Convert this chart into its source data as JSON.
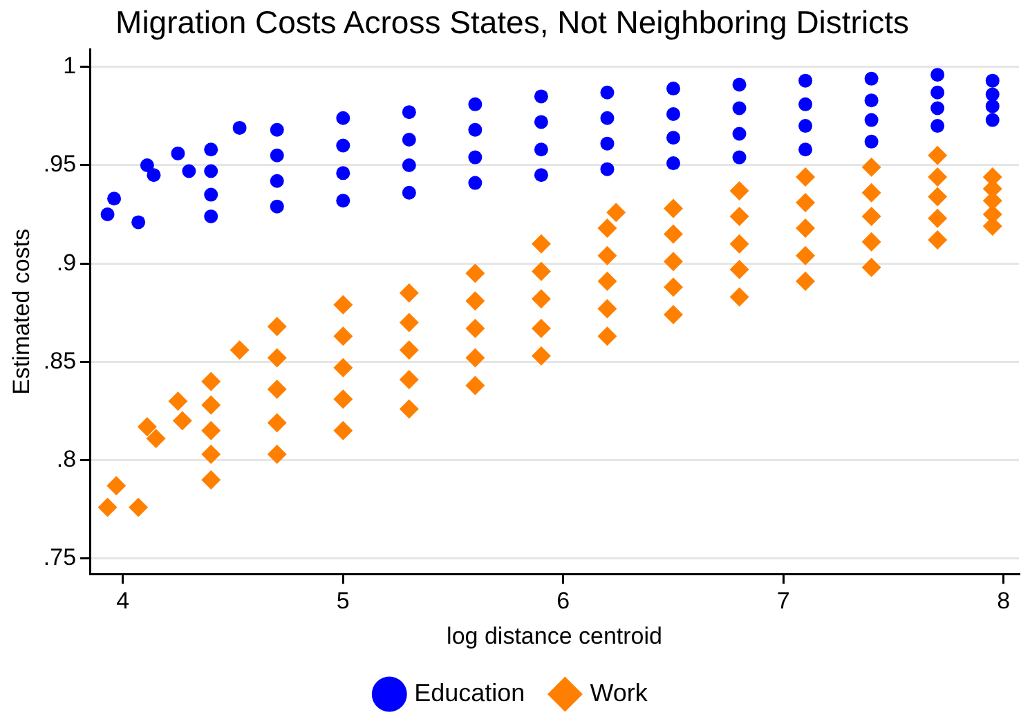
{
  "chart_data": {
    "type": "scatter",
    "title": "Migration Costs Across States, Not Neighboring Districts",
    "xlabel": "log distance centroid",
    "ylabel": "Estimated costs",
    "xlim": [
      3.85,
      8.07
    ],
    "xticks": [
      4,
      5,
      6,
      7,
      8
    ],
    "ylim": [
      0.742,
      1.009
    ],
    "yticks": [
      {
        "value": 0.75,
        "label": ".75"
      },
      {
        "value": 0.8,
        "label": ".8"
      },
      {
        "value": 0.85,
        "label": ".85"
      },
      {
        "value": 0.9,
        "label": ".9"
      },
      {
        "value": 0.95,
        "label": ".95"
      },
      1
    ],
    "grid": "y",
    "legend": "bottom",
    "series": [
      {
        "name": "Education",
        "color": "#0000ff",
        "marker": "circle",
        "x": [
          3.93,
          3.96,
          4.07,
          4.11,
          4.14,
          4.25,
          4.3,
          4.53,
          4.4,
          4.4,
          4.4,
          4.4,
          4.7,
          4.7,
          4.7,
          4.7,
          5.0,
          5.0,
          5.0,
          5.0,
          5.3,
          5.3,
          5.3,
          5.3,
          5.6,
          5.6,
          5.6,
          5.6,
          5.9,
          5.9,
          5.9,
          5.9,
          6.2,
          6.2,
          6.2,
          6.2,
          6.5,
          6.5,
          6.5,
          6.5,
          6.8,
          6.8,
          6.8,
          6.8,
          7.1,
          7.1,
          7.1,
          7.1,
          7.4,
          7.4,
          7.4,
          7.4,
          7.7,
          7.7,
          7.7,
          7.7,
          7.95,
          7.95,
          7.95,
          7.95
        ],
        "values": [
          0.925,
          0.933,
          0.921,
          0.95,
          0.945,
          0.956,
          0.947,
          0.969,
          0.958,
          0.947,
          0.935,
          0.924,
          0.968,
          0.955,
          0.942,
          0.929,
          0.974,
          0.96,
          0.946,
          0.932,
          0.977,
          0.963,
          0.95,
          0.936,
          0.981,
          0.968,
          0.954,
          0.941,
          0.985,
          0.972,
          0.958,
          0.945,
          0.987,
          0.974,
          0.961,
          0.948,
          0.989,
          0.976,
          0.964,
          0.951,
          0.991,
          0.979,
          0.966,
          0.954,
          0.993,
          0.981,
          0.97,
          0.958,
          0.994,
          0.983,
          0.973,
          0.962,
          0.996,
          0.987,
          0.979,
          0.97,
          0.993,
          0.986,
          0.98,
          0.973
        ]
      },
      {
        "name": "Work",
        "color": "#ff8000",
        "marker": "diamond",
        "x": [
          3.93,
          3.97,
          4.07,
          4.11,
          4.15,
          4.25,
          4.27,
          4.53,
          6.24,
          4.4,
          4.4,
          4.4,
          4.4,
          4.4,
          4.7,
          4.7,
          4.7,
          4.7,
          4.7,
          5.0,
          5.0,
          5.0,
          5.0,
          5.0,
          5.3,
          5.3,
          5.3,
          5.3,
          5.3,
          5.6,
          5.6,
          5.6,
          5.6,
          5.6,
          5.9,
          5.9,
          5.9,
          5.9,
          5.9,
          6.2,
          6.2,
          6.2,
          6.2,
          6.2,
          6.5,
          6.5,
          6.5,
          6.5,
          6.5,
          6.8,
          6.8,
          6.8,
          6.8,
          6.8,
          7.1,
          7.1,
          7.1,
          7.1,
          7.1,
          7.4,
          7.4,
          7.4,
          7.4,
          7.4,
          7.7,
          7.7,
          7.7,
          7.7,
          7.7,
          7.95,
          7.95,
          7.95,
          7.95,
          7.95
        ],
        "values": [
          0.776,
          0.787,
          0.776,
          0.817,
          0.811,
          0.83,
          0.82,
          0.856,
          0.926,
          0.84,
          0.828,
          0.815,
          0.803,
          0.79,
          0.868,
          0.852,
          0.836,
          0.819,
          0.803,
          0.879,
          0.863,
          0.847,
          0.831,
          0.815,
          0.885,
          0.87,
          0.856,
          0.841,
          0.826,
          0.895,
          0.881,
          0.867,
          0.852,
          0.838,
          0.91,
          0.896,
          0.882,
          0.867,
          0.853,
          0.918,
          0.904,
          0.891,
          0.877,
          0.863,
          0.928,
          0.915,
          0.901,
          0.888,
          0.874,
          0.937,
          0.924,
          0.91,
          0.897,
          0.883,
          0.944,
          0.931,
          0.918,
          0.904,
          0.891,
          0.949,
          0.936,
          0.924,
          0.911,
          0.898,
          0.955,
          0.944,
          0.934,
          0.923,
          0.912,
          0.944,
          0.938,
          0.932,
          0.925,
          0.919
        ]
      }
    ]
  }
}
